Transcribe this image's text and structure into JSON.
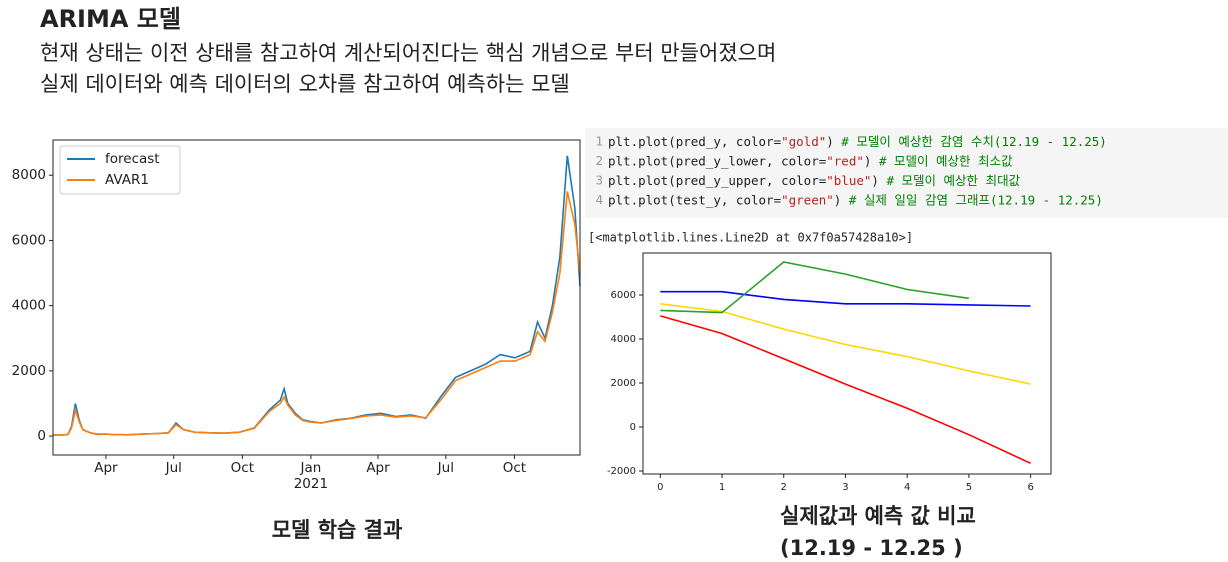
{
  "header": {
    "title": "ARIMA 모델",
    "lines": [
      "현재 상태는 이전 상태를 참고하여 계산되어진다는 핵심 개념으로 부터 만들어졌으며",
      "실제 데이터와 예측 데이터의 오차를 참고하여 예측하는 모델"
    ]
  },
  "code": {
    "lines": [
      {
        "number": "1",
        "parts": [
          "plt.plot(pred_y, color=",
          "\"gold\"",
          ")",
          " # 모델이 예상한 감염 수치(12.19 - 12.25)"
        ]
      },
      {
        "number": "2",
        "parts": [
          "plt.plot(pred_y_lower, color=",
          "\"red\"",
          ")",
          " # 모델이 예상한 최소값"
        ]
      },
      {
        "number": "3",
        "parts": [
          "plt.plot(pred_y_upper, color=",
          "\"blue\"",
          ")",
          " # 모델이 예상한 최대값"
        ]
      },
      {
        "number": "4",
        "parts": [
          "plt.plot(test_y, color=",
          "\"green\"",
          ")",
          " # 실제 일일 감염 그래프(12.19 - 12.25)"
        ]
      }
    ],
    "output": "[<matplotlib.lines.Line2D at 0x7f0a57428a10>]"
  },
  "captions": {
    "left": "모델 학습 결과",
    "right": [
      "실제값과 예측 값 비교",
      "(12.19 - 12.25 )"
    ]
  },
  "chart_data": [
    {
      "type": "line",
      "x": [
        0,
        10,
        20,
        25,
        30,
        35,
        40,
        50,
        60,
        70,
        80,
        100,
        120,
        140,
        155,
        160,
        165,
        175,
        190,
        210,
        230,
        250,
        270,
        290,
        305,
        310,
        315,
        325,
        335,
        345,
        360,
        380,
        400,
        420,
        440,
        460,
        480,
        500,
        520,
        540,
        560,
        580,
        600,
        620,
        640,
        650,
        660,
        670,
        680,
        690,
        700,
        707
      ],
      "series": [
        {
          "name": "forecast",
          "color": "#1f77b4",
          "values": [
            30,
            30,
            50,
            300,
            1000,
            500,
            200,
            100,
            50,
            60,
            50,
            40,
            60,
            80,
            100,
            250,
            400,
            200,
            120,
            100,
            90,
            120,
            250,
            800,
            1100,
            1450,
            1000,
            700,
            500,
            450,
            400,
            500,
            550,
            650,
            700,
            600,
            650,
            550,
            1200,
            1800,
            2000,
            2200,
            2500,
            2400,
            2600,
            3500,
            3000,
            4000,
            5500,
            8600,
            7000,
            4600
          ]
        },
        {
          "name": "AVAR1",
          "color": "#ff7f0e",
          "values": [
            30,
            30,
            50,
            250,
            800,
            450,
            200,
            100,
            60,
            60,
            50,
            40,
            60,
            80,
            100,
            230,
            350,
            200,
            120,
            100,
            90,
            120,
            240,
            750,
            1000,
            1200,
            950,
            650,
            480,
            430,
            400,
            480,
            540,
            620,
            650,
            580,
            620,
            560,
            1100,
            1700,
            1900,
            2100,
            2300,
            2300,
            2500,
            3200,
            2900,
            3800,
            5000,
            7500,
            6500,
            5000
          ]
        }
      ],
      "xlim": [
        0,
        707
      ],
      "ylim": [
        -580,
        9080
      ],
      "xticks": [
        {
          "value": 71,
          "label": "Apr"
        },
        {
          "value": 162,
          "label": "Jul"
        },
        {
          "value": 254,
          "label": "Oct"
        },
        {
          "value": 346,
          "label": "Jan"
        },
        {
          "value": 436,
          "label": "Apr"
        },
        {
          "value": 527,
          "label": "Jul"
        },
        {
          "value": 619,
          "label": "Oct"
        }
      ],
      "year_label": "2021",
      "yticks": [
        0,
        2000,
        4000,
        6000,
        8000
      ],
      "legend": "upper left"
    },
    {
      "type": "line",
      "x": [
        0,
        1,
        2,
        3,
        4,
        5,
        6
      ],
      "series": [
        {
          "color": "gold",
          "values": [
            5600,
            5250,
            4450,
            3750,
            3200,
            2550,
            1950
          ]
        },
        {
          "color": "red",
          "values": [
            5050,
            4250,
            3100,
            1950,
            850,
            -350,
            -1650
          ]
        },
        {
          "color": "blue",
          "values": [
            6150,
            6150,
            5800,
            5600,
            5600,
            5550,
            5500
          ]
        },
        {
          "color": "#2ca02c",
          "values": [
            5300,
            5200,
            7500,
            6950,
            6250,
            5850,
            null
          ]
        }
      ],
      "xlim": [
        -0.28,
        6.33
      ],
      "ylim": [
        -2136,
        7909
      ],
      "xticks": [
        0,
        1,
        2,
        3,
        4,
        5,
        6
      ],
      "yticks": [
        -2000,
        0,
        2000,
        4000,
        6000
      ]
    }
  ]
}
